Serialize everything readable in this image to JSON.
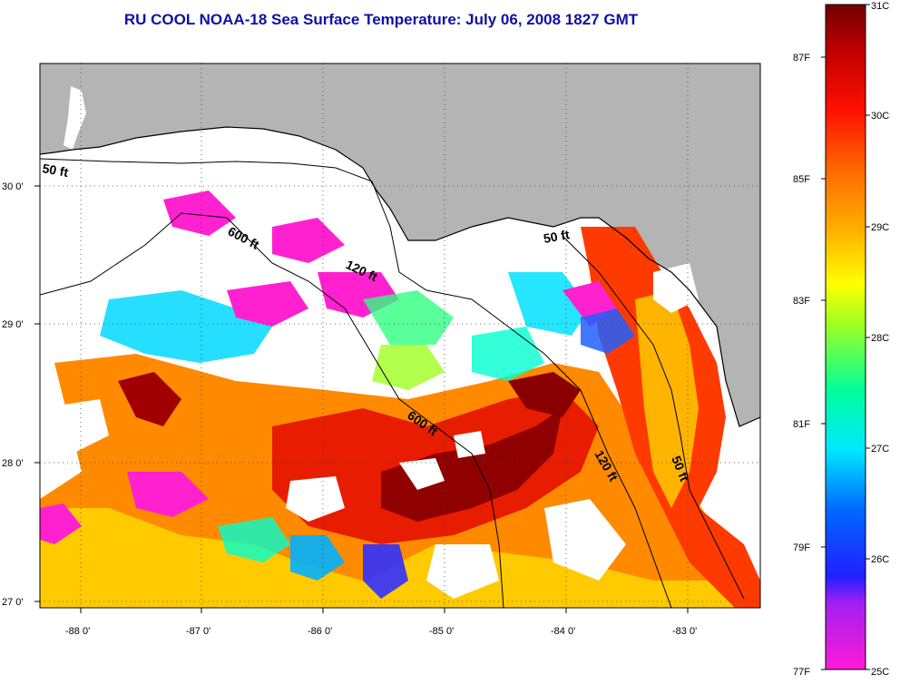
{
  "title": "RU COOL  NOAA-18  Sea Surface Temperature:  July 06, 2008 1827 GMT",
  "map": {
    "lon_range": [
      -88.35,
      -82.45
    ],
    "lat_range": [
      26.95,
      30.85
    ],
    "lon_ticks": [
      {
        "value": -88,
        "label": "-88 0'"
      },
      {
        "value": -87,
        "label": "-87 0'"
      },
      {
        "value": -86,
        "label": "-86 0'"
      },
      {
        "value": -85,
        "label": "-85 0'"
      },
      {
        "value": -84,
        "label": "-84 0'"
      },
      {
        "value": -83,
        "label": "-83 0'"
      }
    ],
    "lat_ticks": [
      {
        "value": 30,
        "label": "30 0'"
      },
      {
        "value": 29,
        "label": "29 0'"
      },
      {
        "value": 28,
        "label": "28 0'"
      },
      {
        "value": 27,
        "label": "27 0'"
      }
    ],
    "grid": "dotted",
    "land_color": "#b4b4b4",
    "cloud_color": "#ffffff",
    "isobaths": [
      {
        "label": "50 ft"
      },
      {
        "label": "600 ft"
      },
      {
        "label": "120 ft"
      },
      {
        "label": "50 ft"
      },
      {
        "label": "600 ft"
      },
      {
        "label": "120 ft"
      },
      {
        "label": "50 ft"
      }
    ]
  },
  "colorbar": {
    "celsius_labels": [
      "31C",
      "30C",
      "29C",
      "28C",
      "27C",
      "26C",
      "25C"
    ],
    "fahrenheit_labels": [
      "87F",
      "85F",
      "83F",
      "81F",
      "79F",
      "77F"
    ],
    "colors": [
      "#ff00ff",
      "#9020ff",
      "#1010ff",
      "#0070ff",
      "#00d8ff",
      "#00ffd0",
      "#50ff60",
      "#d8ff00",
      "#ffff00",
      "#ffb000",
      "#ff7000",
      "#ff2000",
      "#d00000",
      "#7a0000"
    ]
  }
}
